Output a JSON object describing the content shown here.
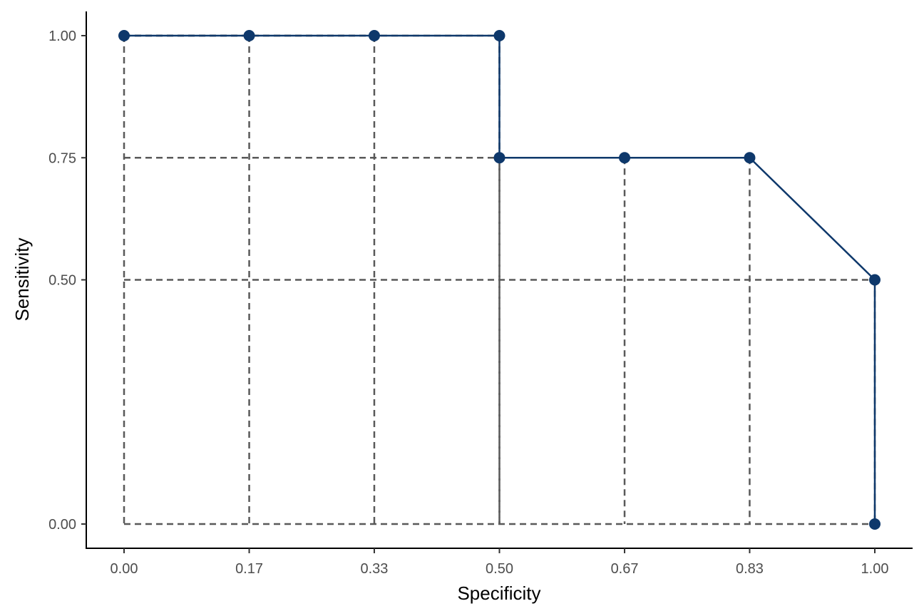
{
  "chart_data": {
    "type": "line",
    "title": "",
    "xlabel": "Specificity",
    "ylabel": "Sensitivity",
    "xlim": [
      0,
      1
    ],
    "ylim": [
      0,
      1
    ],
    "x_ticks": [
      0,
      0.1667,
      0.3333,
      0.5,
      0.6667,
      0.8333,
      1.0
    ],
    "x_tick_labels": [
      "0.00",
      "0.17",
      "0.33",
      "0.50",
      "0.67",
      "0.83",
      "1.00"
    ],
    "y_ticks": [
      0,
      0.5,
      0.75,
      1.0
    ],
    "y_tick_labels": [
      "0.00",
      "0.50",
      "0.75",
      "1.00"
    ],
    "grid": false,
    "legend": "none",
    "series": [
      {
        "x": [
          0,
          0.1667,
          0.3333,
          0.5,
          0.5,
          0.6667,
          0.8333,
          1.0,
          1.0
        ],
        "y": [
          1.0,
          1.0,
          1.0,
          1.0,
          0.75,
          0.75,
          0.75,
          0.5,
          0.0
        ]
      }
    ],
    "reference_lines": "dashed lines from each point to both axes",
    "colors": {
      "line": "#0e386b",
      "points": "#0e386b",
      "dashed": "#595959"
    }
  }
}
